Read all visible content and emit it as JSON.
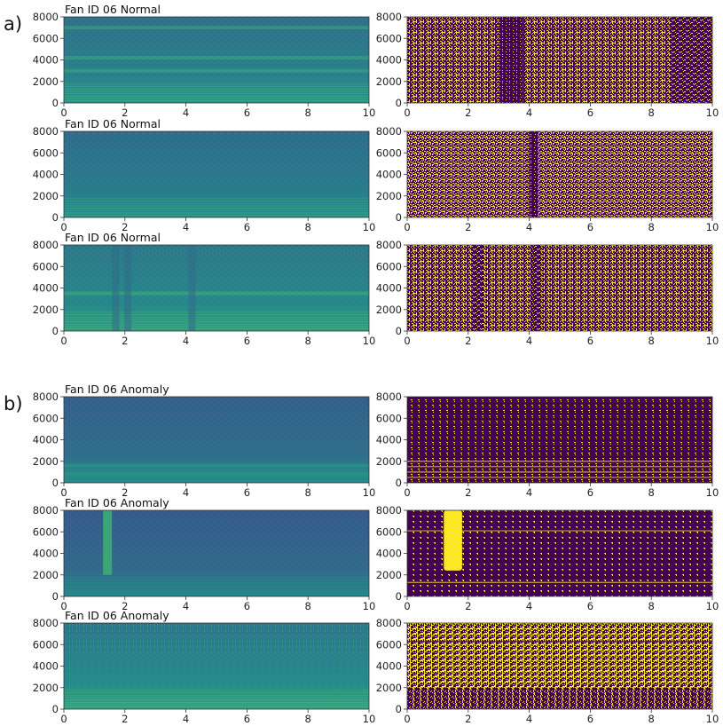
{
  "figure": {
    "group_labels": [
      "a)",
      "b)"
    ],
    "colors": {
      "viridis_low": "#440154",
      "viridis_mid": "#21918c",
      "viridis_high": "#fde725"
    }
  },
  "chart_data": [
    {
      "type": "heatmap",
      "title": "Fan ID 06 Normal",
      "group": "a)",
      "column": "spectrogram",
      "xlim": [
        0,
        10
      ],
      "ylim": [
        0,
        8000
      ],
      "x_ticks": [
        0,
        2,
        4,
        6,
        8,
        10
      ],
      "y_ticks": [
        0,
        2000,
        4000,
        6000,
        8000
      ],
      "x_tick_labels": [
        "0",
        "2",
        "4",
        "6",
        "8",
        "10"
      ],
      "y_tick_labels": [
        "0",
        "2000",
        "4000",
        "6000",
        "8000"
      ],
      "bands_hz": [
        7000,
        4200,
        3000
      ],
      "vertical_events_s": [],
      "mean_level": 0.42
    },
    {
      "type": "heatmap",
      "title": "",
      "group": "a)",
      "column": "binarized",
      "xlim": [
        0,
        10
      ],
      "ylim": [
        0,
        8000
      ],
      "x_ticks": [
        0,
        2,
        4,
        6,
        8,
        10
      ],
      "y_ticks": [
        0,
        2000,
        4000,
        6000,
        8000
      ],
      "x_tick_labels": [
        "0",
        "2",
        "4",
        "6",
        "8",
        "10"
      ],
      "y_tick_labels": [
        "0",
        "2000",
        "4000",
        "6000",
        "8000"
      ],
      "dark_regions_s": [
        [
          3.0,
          3.8
        ],
        [
          8.6,
          10
        ]
      ],
      "bands_hz": [
        7000,
        3400
      ],
      "mean_level": 0.55
    },
    {
      "type": "heatmap",
      "title": "Fan ID 06 Normal",
      "group": "a)",
      "column": "spectrogram",
      "xlim": [
        0,
        10
      ],
      "ylim": [
        0,
        8000
      ],
      "x_ticks": [
        0,
        2,
        4,
        6,
        8,
        10
      ],
      "y_ticks": [
        0,
        2000,
        4000,
        6000,
        8000
      ],
      "x_tick_labels": [
        "0",
        "2",
        "4",
        "6",
        "8",
        "10"
      ],
      "y_tick_labels": [
        "0",
        "2000",
        "4000",
        "6000",
        "8000"
      ],
      "bands_hz": [],
      "vertical_events_s": [],
      "mean_level": 0.4
    },
    {
      "type": "heatmap",
      "title": "",
      "group": "a)",
      "column": "binarized",
      "xlim": [
        0,
        10
      ],
      "ylim": [
        0,
        8000
      ],
      "x_ticks": [
        0,
        2,
        4,
        6,
        8,
        10
      ],
      "y_ticks": [
        0,
        2000,
        4000,
        6000,
        8000
      ],
      "x_tick_labels": [
        "0",
        "2",
        "4",
        "6",
        "8",
        "10"
      ],
      "y_tick_labels": [
        "0",
        "2000",
        "4000",
        "6000",
        "8000"
      ],
      "dark_regions_s": [
        [
          4.0,
          4.3
        ]
      ],
      "bands_hz": [],
      "mean_level": 0.5
    },
    {
      "type": "heatmap",
      "title": "Fan ID 06 Normal",
      "group": "a)",
      "column": "spectrogram",
      "xlim": [
        0,
        10
      ],
      "ylim": [
        0,
        8000
      ],
      "x_ticks": [
        0,
        2,
        4,
        6,
        8,
        10
      ],
      "y_ticks": [
        0,
        2000,
        4000,
        6000,
        8000
      ],
      "x_tick_labels": [
        "0",
        "2",
        "4",
        "6",
        "8",
        "10"
      ],
      "y_tick_labels": [
        "0",
        "2000",
        "4000",
        "6000",
        "8000"
      ],
      "bands_hz": [
        3500
      ],
      "vertical_events_s": [
        1.7,
        2.1,
        4.2
      ],
      "mean_level": 0.45
    },
    {
      "type": "heatmap",
      "title": "",
      "group": "a)",
      "column": "binarized",
      "xlim": [
        0,
        10
      ],
      "ylim": [
        0,
        8000
      ],
      "x_ticks": [
        0,
        2,
        4,
        6,
        8,
        10
      ],
      "y_ticks": [
        0,
        2000,
        4000,
        6000,
        8000
      ],
      "x_tick_labels": [
        "0",
        "2",
        "4",
        "6",
        "8",
        "10"
      ],
      "y_tick_labels": [
        "0",
        "2000",
        "4000",
        "6000",
        "8000"
      ],
      "dark_regions_s": [
        [
          2.1,
          2.5
        ],
        [
          4.1,
          4.4
        ]
      ],
      "bands_hz": [],
      "mean_level": 0.55
    },
    {
      "type": "heatmap",
      "title": "Fan ID 06 Anomaly",
      "group": "b)",
      "column": "spectrogram",
      "xlim": [
        0,
        10
      ],
      "ylim": [
        0,
        8000
      ],
      "x_ticks": [
        0,
        2,
        4,
        6,
        8,
        10
      ],
      "y_ticks": [
        0,
        2000,
        4000,
        6000,
        8000
      ],
      "x_tick_labels": [
        "0",
        "2",
        "4",
        "6",
        "8",
        "10"
      ],
      "y_tick_labels": [
        "0",
        "2000",
        "4000",
        "6000",
        "8000"
      ],
      "bands_hz": [
        800,
        1600
      ],
      "vertical_events_s": [],
      "mean_level": 0.35
    },
    {
      "type": "heatmap",
      "title": "",
      "group": "b)",
      "column": "binarized",
      "xlim": [
        0,
        10
      ],
      "ylim": [
        0,
        8000
      ],
      "x_ticks": [
        0,
        2,
        4,
        6,
        8,
        10
      ],
      "y_ticks": [
        0,
        2000,
        4000,
        6000,
        8000
      ],
      "x_tick_labels": [
        "0",
        "2",
        "4",
        "6",
        "8",
        "10"
      ],
      "y_tick_labels": [
        "0",
        "2000",
        "4000",
        "6000",
        "8000"
      ],
      "dark_regions_s": [],
      "bands_hz": [
        500,
        1000,
        1500,
        2000
      ],
      "mean_level": 0.04
    },
    {
      "type": "heatmap",
      "title": "Fan ID 06 Anomaly",
      "group": "b)",
      "column": "spectrogram",
      "xlim": [
        0,
        10
      ],
      "ylim": [
        0,
        8000
      ],
      "x_ticks": [
        0,
        2,
        4,
        6,
        8,
        10
      ],
      "y_ticks": [
        0,
        2000,
        4000,
        6000,
        8000
      ],
      "x_tick_labels": [
        "0",
        "2",
        "4",
        "6",
        "8",
        "10"
      ],
      "y_tick_labels": [
        "0",
        "2000",
        "4000",
        "6000",
        "8000"
      ],
      "bands_hz": [],
      "vertical_events_s": [
        1.4
      ],
      "mean_level": 0.33
    },
    {
      "type": "heatmap",
      "title": "",
      "group": "b)",
      "column": "binarized",
      "xlim": [
        0,
        10
      ],
      "ylim": [
        0,
        8000
      ],
      "x_ticks": [
        0,
        2,
        4,
        6,
        8,
        10
      ],
      "y_ticks": [
        0,
        2000,
        4000,
        6000,
        8000
      ],
      "x_tick_labels": [
        "0",
        "2",
        "4",
        "6",
        "8",
        "10"
      ],
      "y_tick_labels": [
        "0",
        "2000",
        "4000",
        "6000",
        "8000"
      ],
      "dark_regions_s": [],
      "bright_regions_s": [
        [
          1.2,
          1.8
        ]
      ],
      "bands_hz": [
        1300,
        6100
      ],
      "mean_level": 0.05
    },
    {
      "type": "heatmap",
      "title": "Fan ID 06 Anomaly",
      "group": "b)",
      "column": "spectrogram",
      "xlim": [
        0,
        10
      ],
      "ylim": [
        0,
        8000
      ],
      "x_ticks": [
        0,
        2,
        4,
        6,
        8,
        10
      ],
      "y_ticks": [
        0,
        2000,
        4000,
        6000,
        8000
      ],
      "x_tick_labels": [
        "0",
        "2",
        "4",
        "6",
        "8",
        "10"
      ],
      "y_tick_labels": [
        "0",
        "2000",
        "4000",
        "6000",
        "8000"
      ],
      "bands_hz": [],
      "vertical_events_s": [],
      "mean_level": 0.46
    },
    {
      "type": "heatmap",
      "title": "",
      "group": "b)",
      "column": "binarized",
      "xlim": [
        0,
        10
      ],
      "ylim": [
        0,
        8000
      ],
      "x_ticks": [
        0,
        2,
        4,
        6,
        8,
        10
      ],
      "y_ticks": [
        0,
        2000,
        4000,
        6000,
        8000
      ],
      "x_tick_labels": [
        "0",
        "2",
        "4",
        "6",
        "8",
        "10"
      ],
      "y_tick_labels": [
        "0",
        "2000",
        "4000",
        "6000",
        "8000"
      ],
      "dark_regions_s": [],
      "bands_hz": [
        6300
      ],
      "low_band_dark_below_hz": 2000,
      "mean_level": 0.7
    }
  ]
}
